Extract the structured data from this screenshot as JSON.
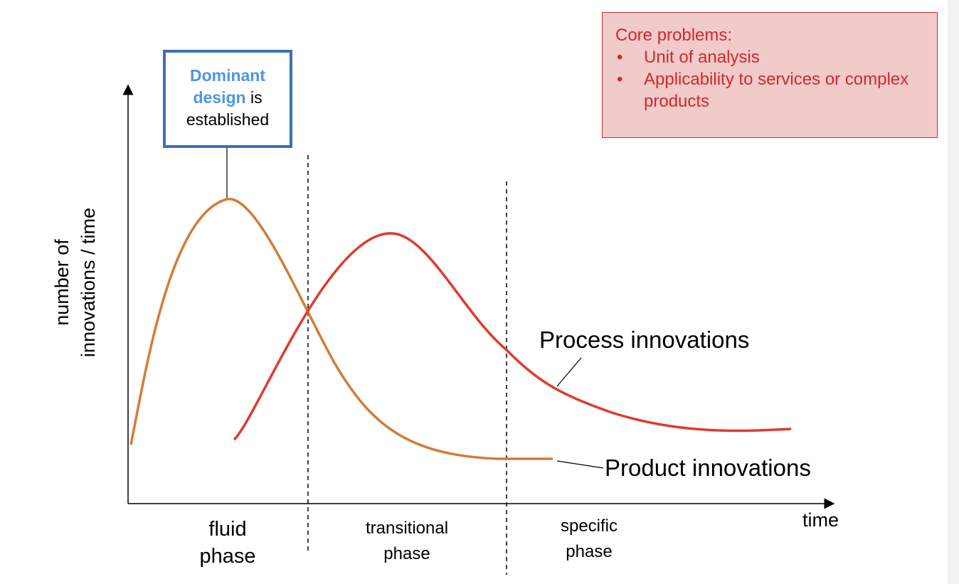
{
  "callout": {
    "highlight": "Dominant design",
    "rest_line1": " is",
    "rest_line2": "established"
  },
  "core_problems": {
    "heading": "Core problems:",
    "items": [
      "Unit of analysis",
      "Applicability to services or complex products"
    ]
  },
  "axes": {
    "y_label_line1": "number of",
    "y_label_line2": "innovations / time",
    "x_label": "time"
  },
  "curves": {
    "process_label": "Process innovations",
    "product_label": "Product innovations",
    "process_color": "#e2392d",
    "product_color": "#d27d37"
  },
  "phases": {
    "fluid_line1": "fluid",
    "fluid_line2": "phase",
    "transitional_line1": "transitional",
    "transitional_line2": "phase",
    "specific_line1": "specific",
    "specific_line2": "phase"
  }
}
